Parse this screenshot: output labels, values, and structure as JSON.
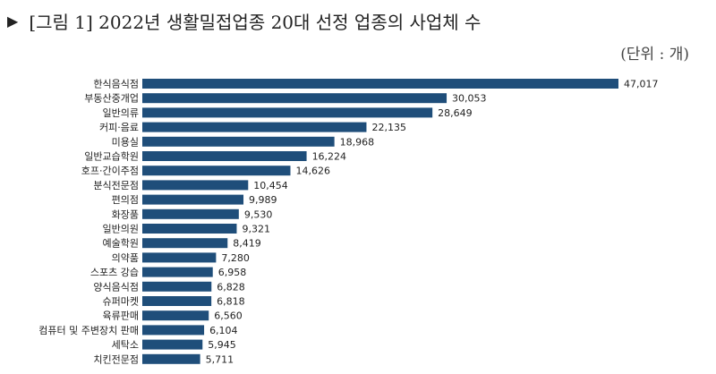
{
  "title": {
    "marker": "▶",
    "text": "[그림 1] 2022년 생활밀접업종 20대 선정 업종의 사업체 수"
  },
  "unit_label": "(단위 : 개)",
  "chart_data": {
    "type": "bar",
    "orientation": "horizontal",
    "title": "[그림 1] 2022년 생활밀접업종 20대 선정 업종의 사업체 수",
    "unit": "(단위 : 개)",
    "bar_color": "#1f4e7a",
    "grid": false,
    "categories": [
      "한식음식점",
      "부동산중개업",
      "일반의류",
      "커피·음료",
      "미용실",
      "일반교습학원",
      "호프·간이주점",
      "분식전문점",
      "편의점",
      "화장품",
      "일반의원",
      "예술학원",
      "의약품",
      "스포츠 강습",
      "양식음식점",
      "슈퍼마켓",
      "육류판매",
      "컴퓨터 및 주변장치 판매",
      "세탁소",
      "치킨전문점"
    ],
    "values": [
      47017,
      30053,
      28649,
      22135,
      18968,
      16224,
      14626,
      10454,
      9989,
      9530,
      9321,
      8419,
      7280,
      6958,
      6828,
      6818,
      6560,
      6104,
      5945,
      5711
    ],
    "value_labels": [
      "47,017",
      "30,053",
      "28,649",
      "22,135",
      "18,968",
      "16,224",
      "14,626",
      "10,454",
      "9,989",
      "9,530",
      "9,321",
      "8,419",
      "7,280",
      "6,958",
      "6,828",
      "6,818",
      "6,560",
      "6,104",
      "5,945",
      "5,711"
    ]
  }
}
